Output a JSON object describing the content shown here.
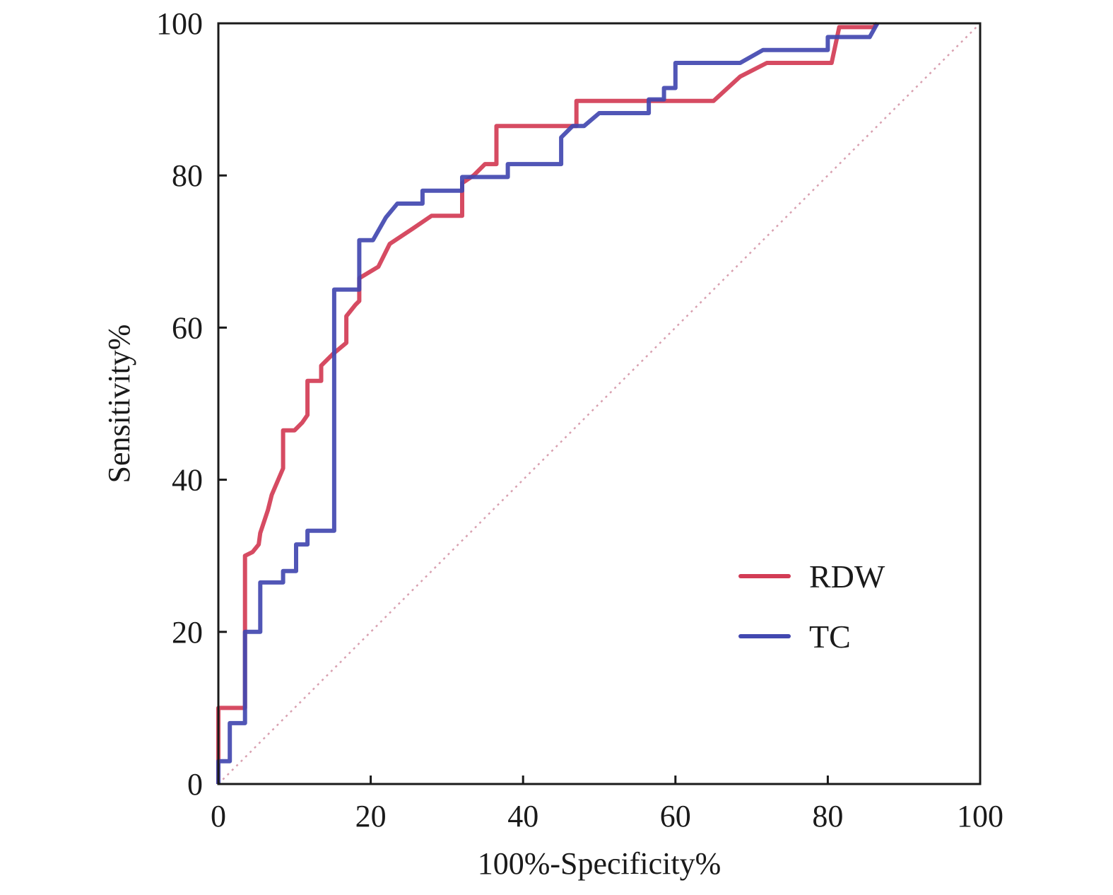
{
  "chart_data": {
    "type": "line",
    "title": "",
    "xlabel": "100%-Specificity%",
    "ylabel": "Sensitivity%",
    "xlim": [
      0,
      100
    ],
    "ylim": [
      0,
      100
    ],
    "xticks": [
      0,
      20,
      40,
      60,
      80,
      100
    ],
    "yticks": [
      0,
      20,
      40,
      60,
      80,
      100
    ],
    "xtick_labels": [
      "0",
      "20",
      "40",
      "60",
      "80",
      "100"
    ],
    "ytick_labels": [
      "0",
      "20",
      "40",
      "60",
      "80",
      "100"
    ],
    "grid": false,
    "legend_position": "bottom-right",
    "reference_line": {
      "name": "chance",
      "points": [
        [
          0,
          0
        ],
        [
          100,
          100
        ]
      ],
      "color": "#d9a0b0",
      "style": "dotted"
    },
    "series": [
      {
        "name": "RDW",
        "color": "#d23c55",
        "points": [
          [
            0,
            0
          ],
          [
            0,
            10
          ],
          [
            3.5,
            10
          ],
          [
            3.5,
            30
          ],
          [
            4.5,
            30.5
          ],
          [
            5.3,
            31.5
          ],
          [
            5.5,
            33
          ],
          [
            6.5,
            36
          ],
          [
            7,
            38
          ],
          [
            8.5,
            41.5
          ],
          [
            8.5,
            46.5
          ],
          [
            10,
            46.5
          ],
          [
            11,
            47.5
          ],
          [
            11.7,
            48.5
          ],
          [
            11.7,
            53
          ],
          [
            13.5,
            53
          ],
          [
            13.5,
            55
          ],
          [
            15,
            56.5
          ],
          [
            16.8,
            58
          ],
          [
            16.8,
            61.5
          ],
          [
            18,
            63
          ],
          [
            18.5,
            63.5
          ],
          [
            18.5,
            66.5
          ],
          [
            21,
            68
          ],
          [
            22.5,
            71
          ],
          [
            25.5,
            73
          ],
          [
            28,
            74.7
          ],
          [
            32,
            74.7
          ],
          [
            32,
            79
          ],
          [
            33.5,
            80
          ],
          [
            35,
            81.5
          ],
          [
            36.5,
            81.5
          ],
          [
            36.5,
            86.5
          ],
          [
            47,
            86.5
          ],
          [
            47,
            89.8
          ],
          [
            65,
            89.8
          ],
          [
            68.5,
            93
          ],
          [
            72,
            94.8
          ],
          [
            80.5,
            94.8
          ],
          [
            81.5,
            99.5
          ],
          [
            86,
            99.5
          ],
          [
            86.5,
            100
          ]
        ]
      },
      {
        "name": "TC",
        "color": "#4248b0",
        "points": [
          [
            0,
            0
          ],
          [
            0,
            3
          ],
          [
            1.5,
            3
          ],
          [
            1.5,
            8
          ],
          [
            3.5,
            8
          ],
          [
            3.5,
            20
          ],
          [
            5.5,
            20
          ],
          [
            5.5,
            26.5
          ],
          [
            8.5,
            26.5
          ],
          [
            8.5,
            28
          ],
          [
            10.2,
            28
          ],
          [
            10.2,
            31.5
          ],
          [
            11.7,
            31.5
          ],
          [
            11.7,
            33.3
          ],
          [
            15.2,
            33.3
          ],
          [
            15.2,
            65
          ],
          [
            18.5,
            65
          ],
          [
            18.5,
            71.5
          ],
          [
            20.3,
            71.5
          ],
          [
            22,
            74.5
          ],
          [
            23.5,
            76.3
          ],
          [
            26.8,
            76.3
          ],
          [
            26.8,
            78
          ],
          [
            32,
            78
          ],
          [
            32,
            79.8
          ],
          [
            38,
            79.8
          ],
          [
            38,
            81.5
          ],
          [
            45,
            81.5
          ],
          [
            45,
            85
          ],
          [
            46.5,
            86.5
          ],
          [
            48,
            86.5
          ],
          [
            50,
            88.2
          ],
          [
            56.5,
            88.2
          ],
          [
            56.5,
            90
          ],
          [
            58.5,
            90
          ],
          [
            58.5,
            91.5
          ],
          [
            60,
            91.5
          ],
          [
            60,
            94.8
          ],
          [
            68.5,
            94.8
          ],
          [
            71.5,
            96.5
          ],
          [
            80,
            96.5
          ],
          [
            80,
            98.2
          ],
          [
            85.5,
            98.2
          ],
          [
            86.5,
            100
          ]
        ]
      }
    ]
  }
}
